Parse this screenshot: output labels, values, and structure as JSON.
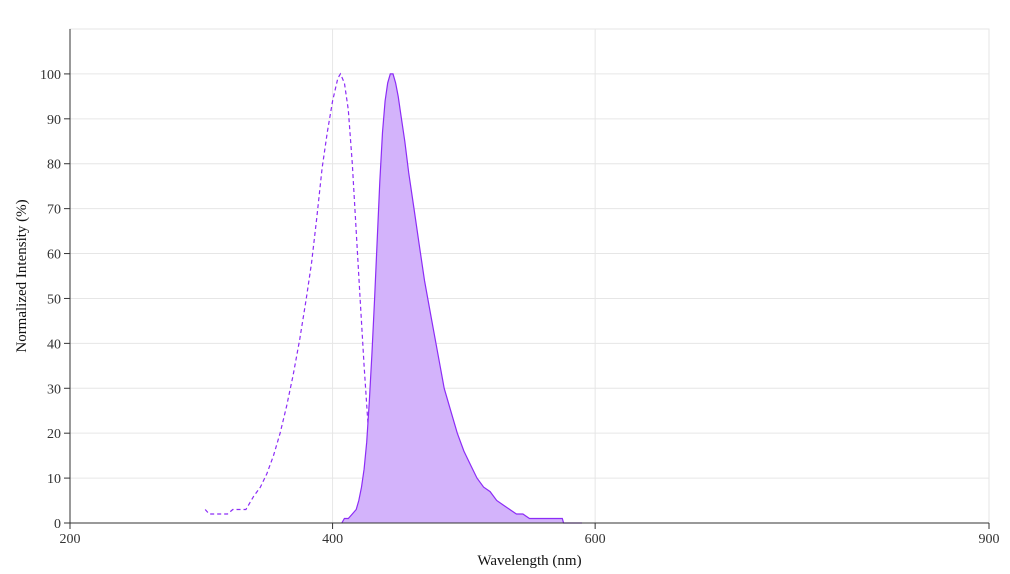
{
  "chart_data": {
    "type": "area",
    "title": "",
    "xlabel": "Wavelength (nm)",
    "ylabel": "Normalized Intensity (%)",
    "xlim": [
      200,
      900
    ],
    "ylim": [
      0,
      110
    ],
    "x_ticks": [
      200,
      400,
      600,
      900
    ],
    "y_ticks": [
      0,
      10,
      20,
      30,
      40,
      50,
      60,
      70,
      80,
      90,
      100
    ],
    "grid": true,
    "legend": "none",
    "series": [
      {
        "style": "dashed-line",
        "color": "#8c2cf6",
        "points": [
          [
            303,
            3
          ],
          [
            306,
            2
          ],
          [
            310,
            2
          ],
          [
            320,
            2
          ],
          [
            324,
            3
          ],
          [
            330,
            3
          ],
          [
            334,
            3
          ],
          [
            340,
            6
          ],
          [
            345,
            8
          ],
          [
            350,
            11
          ],
          [
            355,
            15
          ],
          [
            360,
            20
          ],
          [
            365,
            26
          ],
          [
            370,
            33
          ],
          [
            375,
            41
          ],
          [
            380,
            50
          ],
          [
            384,
            58
          ],
          [
            388,
            68
          ],
          [
            392,
            79
          ],
          [
            396,
            87
          ],
          [
            400,
            94
          ],
          [
            404,
            99
          ],
          [
            406,
            100
          ],
          [
            409,
            98
          ],
          [
            412,
            92
          ],
          [
            415,
            80
          ],
          [
            418,
            65
          ],
          [
            421,
            50
          ],
          [
            424,
            35
          ],
          [
            427,
            22
          ],
          [
            430,
            13
          ],
          [
            433,
            8
          ],
          [
            436,
            4
          ],
          [
            439,
            2
          ]
        ]
      },
      {
        "style": "filled-area",
        "color": "#8c2cf6",
        "fill": "#d3b3fb",
        "points": [
          [
            407,
            0
          ],
          [
            409,
            1
          ],
          [
            412,
            1
          ],
          [
            415,
            2
          ],
          [
            418,
            3
          ],
          [
            420,
            5
          ],
          [
            422,
            8
          ],
          [
            424,
            12
          ],
          [
            426,
            18
          ],
          [
            428,
            27
          ],
          [
            430,
            38
          ],
          [
            432,
            50
          ],
          [
            434,
            63
          ],
          [
            436,
            76
          ],
          [
            438,
            87
          ],
          [
            440,
            94
          ],
          [
            442,
            98
          ],
          [
            444,
            100
          ],
          [
            446,
            100
          ],
          [
            448,
            98
          ],
          [
            450,
            95
          ],
          [
            452,
            91
          ],
          [
            455,
            85
          ],
          [
            458,
            78
          ],
          [
            462,
            70
          ],
          [
            466,
            62
          ],
          [
            470,
            54
          ],
          [
            475,
            46
          ],
          [
            480,
            38
          ],
          [
            485,
            30
          ],
          [
            490,
            25
          ],
          [
            495,
            20
          ],
          [
            500,
            16
          ],
          [
            505,
            13
          ],
          [
            510,
            10
          ],
          [
            515,
            8
          ],
          [
            520,
            7
          ],
          [
            525,
            5
          ],
          [
            530,
            4
          ],
          [
            535,
            3
          ],
          [
            540,
            2
          ],
          [
            545,
            2
          ],
          [
            550,
            1
          ],
          [
            560,
            1
          ],
          [
            570,
            1
          ],
          [
            575,
            1
          ],
          [
            576,
            0
          ],
          [
            590,
            0
          ]
        ]
      }
    ]
  }
}
